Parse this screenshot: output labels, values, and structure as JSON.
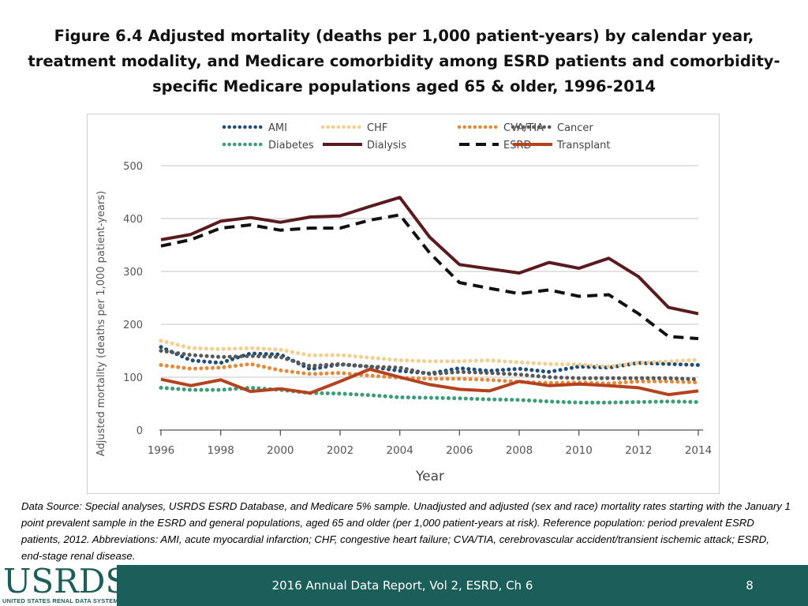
{
  "title_lines": [
    "Figure 6.4  Adjusted mortality (deaths per 1,000 patient-years) by calendar year,",
    "treatment modality, and Medicare comorbidity among ESRD patients and comorbidity-",
    "specific Medicare populations aged 65 & older, 1996-2014"
  ],
  "chart_data": {
    "type": "line",
    "title": "Figure 6.4  Adjusted mortality (deaths per 1,000 patient-years) by calendar year, treatment modality, and Medicare comorbidity among ESRD patients and comorbidity-specific Medicare populations aged 65 & older, 1996-2014",
    "xlabel": "Year",
    "ylabel": "Adjusted mortality (deaths per 1,000 patient-years)",
    "xlim": [
      1996,
      2014
    ],
    "ylim": [
      0,
      500
    ],
    "grid": true,
    "legend_position": "top",
    "x": [
      1996,
      1997,
      1998,
      1999,
      2000,
      2001,
      2002,
      2003,
      2004,
      2005,
      2006,
      2007,
      2008,
      2009,
      2010,
      2011,
      2012,
      2013,
      2014
    ],
    "x_ticks": [
      "1996",
      "1998",
      "2000",
      "2002",
      "2004",
      "2006",
      "2008",
      "2010",
      "2012",
      "2014"
    ],
    "y_ticks": [
      "0",
      "100",
      "200",
      "300",
      "400",
      "500"
    ],
    "series": [
      {
        "name": "AMI",
        "color": "#1f4e79",
        "style": "dotted",
        "values": [
          157,
          132,
          127,
          145,
          143,
          115,
          124,
          120,
          112,
          107,
          117,
          112,
          116,
          110,
          120,
          118,
          127,
          125,
          123
        ]
      },
      {
        "name": "CHF",
        "color": "#f2cf8c",
        "style": "dotted",
        "values": [
          169,
          155,
          153,
          155,
          152,
          141,
          142,
          137,
          132,
          130,
          130,
          132,
          128,
          125,
          124,
          120,
          127,
          130,
          133
        ]
      },
      {
        "name": "CVA/TIA",
        "color": "#e6893a",
        "style": "dotted",
        "values": [
          123,
          116,
          118,
          125,
          113,
          106,
          108,
          103,
          99,
          97,
          97,
          95,
          91,
          89,
          90,
          88,
          92,
          92,
          90
        ]
      },
      {
        "name": "Cancer",
        "color": "#595959",
        "style": "dotted",
        "values": [
          150,
          142,
          138,
          140,
          138,
          121,
          125,
          120,
          118,
          106,
          110,
          108,
          105,
          100,
          98,
          98,
          98,
          98,
          96
        ]
      },
      {
        "name": "Diabetes",
        "color": "#3a9e79",
        "style": "dotted",
        "values": [
          80,
          76,
          76,
          80,
          76,
          70,
          69,
          66,
          62,
          61,
          60,
          58,
          57,
          54,
          52,
          52,
          53,
          54,
          53
        ]
      },
      {
        "name": "Dialysis",
        "color": "#5b1a1f",
        "style": "solid",
        "values": [
          360,
          370,
          395,
          402,
          393,
          403,
          405,
          423,
          440,
          365,
          313,
          305,
          297,
          317,
          306,
          325,
          290,
          232,
          220
        ]
      },
      {
        "name": "ESRD",
        "color": "#111111",
        "style": "dashed",
        "values": [
          348,
          360,
          382,
          388,
          378,
          382,
          382,
          397,
          407,
          335,
          279,
          268,
          258,
          265,
          253,
          256,
          220,
          177,
          173
        ]
      },
      {
        "name": "Transplant",
        "color": "#b5421f",
        "style": "solid",
        "values": [
          96,
          84,
          95,
          73,
          78,
          70,
          92,
          115,
          100,
          86,
          77,
          74,
          92,
          84,
          87,
          84,
          80,
          67,
          74
        ]
      }
    ]
  },
  "caption": "Data Source: Special analyses, USRDS ESRD Database, and Medicare 5% sample. Unadjusted and adjusted (sex and race) mortality rates starting with the January 1 point prevalent sample in the ESRD and general populations, aged 65 and older (per 1,000 patient-years at risk). Reference population: period prevalent ESRD patients, 2012. Abbreviations: AMI, acute myocardial infarction; CHF, congestive heart failure; CVA/TIA, cerebrovascular accident/transient ischemic attack; ESRD, end-stage renal disease.",
  "footer": {
    "logo_text": "USRDS",
    "logo_subtitle": "UNITED STATES RENAL DATA SYSTEM",
    "report": "2016 Annual Data Report, Vol 2, ESRD, Ch 6",
    "page": "8",
    "bg_color": "#1c5e59"
  }
}
